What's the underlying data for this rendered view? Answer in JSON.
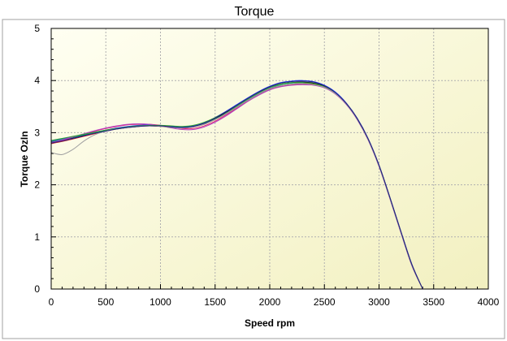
{
  "chart_data": {
    "type": "line",
    "title": "Torque",
    "xlabel": "Speed rpm",
    "ylabel": "Torque OzIn",
    "xlim": [
      0,
      4000
    ],
    "ylim": [
      0,
      5
    ],
    "x_ticks": [
      0,
      500,
      1000,
      1500,
      2000,
      2500,
      3000,
      3500,
      4000
    ],
    "y_ticks": [
      0,
      1,
      2,
      3,
      4,
      5
    ],
    "x_tick_labels": [
      "0",
      "500",
      "1000",
      "1500",
      "2000",
      "2500",
      "3000",
      "3500",
      "4000"
    ],
    "y_tick_labels": [
      "0",
      "1",
      "2",
      "3",
      "4",
      "5"
    ],
    "grid": true,
    "legend": "none",
    "background_gradient": [
      "#fffff2",
      "#f2f0c0"
    ],
    "x": [
      0,
      100,
      200,
      300,
      400,
      500,
      600,
      700,
      800,
      900,
      1000,
      1100,
      1200,
      1300,
      1400,
      1500,
      1600,
      1700,
      1800,
      1900,
      2000,
      2100,
      2200,
      2300,
      2400,
      2500,
      2600,
      2700,
      2800,
      2900,
      3000,
      3100,
      3200,
      3300,
      3400
    ],
    "series": [
      {
        "color": "#000000",
        "values": [
          2.82,
          2.86,
          2.9,
          2.95,
          3.0,
          3.04,
          3.08,
          3.11,
          3.13,
          3.14,
          3.13,
          3.11,
          3.1,
          3.12,
          3.18,
          3.27,
          3.39,
          3.52,
          3.65,
          3.77,
          3.87,
          3.93,
          3.96,
          3.97,
          3.95,
          3.89,
          3.76,
          3.56,
          3.27,
          2.88,
          2.37,
          1.75,
          1.1,
          0.47,
          0.0
        ]
      },
      {
        "color": "#1f3cff",
        "values": [
          2.84,
          2.88,
          2.92,
          2.97,
          3.01,
          3.05,
          3.09,
          3.12,
          3.14,
          3.15,
          3.14,
          3.12,
          3.11,
          3.13,
          3.19,
          3.29,
          3.41,
          3.54,
          3.67,
          3.79,
          3.89,
          3.96,
          3.99,
          4.0,
          3.98,
          3.91,
          3.78,
          3.57,
          3.28,
          2.89,
          2.38,
          1.76,
          1.11,
          0.48,
          0.0
        ]
      },
      {
        "color": "#e0207a",
        "values": [
          2.8,
          2.85,
          2.91,
          2.97,
          3.03,
          3.08,
          3.12,
          3.15,
          3.16,
          3.16,
          3.14,
          3.11,
          3.08,
          3.08,
          3.13,
          3.22,
          3.34,
          3.47,
          3.61,
          3.73,
          3.83,
          3.89,
          3.92,
          3.93,
          3.92,
          3.87,
          3.75,
          3.55,
          3.26,
          2.87,
          2.36,
          1.74,
          1.09,
          0.46,
          0.0
        ]
      },
      {
        "color": "#18a088",
        "values": [
          2.83,
          2.87,
          2.91,
          2.96,
          3.0,
          3.04,
          3.07,
          3.1,
          3.12,
          3.13,
          3.12,
          3.11,
          3.1,
          3.12,
          3.17,
          3.26,
          3.37,
          3.5,
          3.63,
          3.75,
          3.85,
          3.92,
          3.95,
          3.96,
          3.94,
          3.88,
          3.75,
          3.55,
          3.26,
          2.87,
          2.36,
          1.74,
          1.09,
          0.46,
          0.0
        ]
      },
      {
        "color": "#d02020",
        "values": [
          2.79,
          2.83,
          2.88,
          2.93,
          2.98,
          3.03,
          3.07,
          3.1,
          3.12,
          3.13,
          3.12,
          3.1,
          3.09,
          3.11,
          3.16,
          3.25,
          3.36,
          3.49,
          3.62,
          3.74,
          3.84,
          3.9,
          3.93,
          3.94,
          3.93,
          3.88,
          3.76,
          3.56,
          3.27,
          2.88,
          2.37,
          1.75,
          1.1,
          0.47,
          0.0
        ]
      },
      {
        "color": "#b040c0",
        "values": [
          2.81,
          2.86,
          2.92,
          2.98,
          3.04,
          3.09,
          3.13,
          3.16,
          3.17,
          3.16,
          3.13,
          3.09,
          3.06,
          3.06,
          3.11,
          3.2,
          3.32,
          3.46,
          3.6,
          3.72,
          3.82,
          3.88,
          3.91,
          3.92,
          3.91,
          3.86,
          3.74,
          3.54,
          3.25,
          2.86,
          2.35,
          1.73,
          1.08,
          0.45,
          0.0
        ]
      },
      {
        "color": "#30a030",
        "values": [
          2.85,
          2.89,
          2.93,
          2.97,
          3.01,
          3.05,
          3.08,
          3.11,
          3.13,
          3.14,
          3.14,
          3.13,
          3.12,
          3.14,
          3.2,
          3.29,
          3.4,
          3.52,
          3.65,
          3.77,
          3.87,
          3.93,
          3.96,
          3.96,
          3.94,
          3.88,
          3.76,
          3.56,
          3.27,
          2.88,
          2.37,
          1.75,
          1.1,
          0.47,
          0.0
        ]
      },
      {
        "color": "#a0a0a0",
        "values": [
          2.62,
          2.58,
          2.68,
          2.84,
          2.96,
          3.03,
          3.07,
          3.1,
          3.12,
          3.13,
          3.12,
          3.1,
          3.09,
          3.11,
          3.16,
          3.25,
          3.36,
          3.49,
          3.62,
          3.74,
          3.84,
          3.9,
          3.93,
          3.94,
          3.92,
          3.87,
          3.75,
          3.55,
          3.26,
          2.87,
          2.36,
          1.74,
          1.09,
          0.46,
          0.0
        ]
      },
      {
        "color": "#202080",
        "values": [
          2.8,
          2.84,
          2.89,
          2.94,
          2.99,
          3.03,
          3.07,
          3.1,
          3.12,
          3.13,
          3.13,
          3.11,
          3.1,
          3.12,
          3.18,
          3.28,
          3.4,
          3.53,
          3.66,
          3.78,
          3.88,
          3.95,
          3.98,
          3.99,
          3.97,
          3.9,
          3.77,
          3.56,
          3.27,
          2.88,
          2.37,
          1.75,
          1.1,
          0.47,
          0.0
        ]
      }
    ]
  }
}
